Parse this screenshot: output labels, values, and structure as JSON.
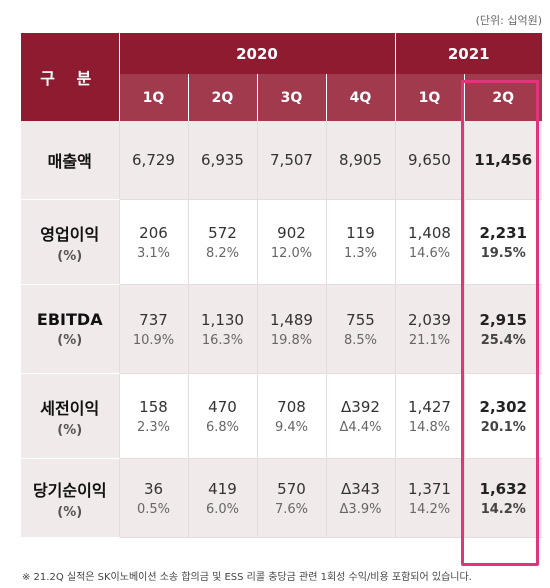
{
  "unit_note": "(단위: 십억원)",
  "header": {
    "category": "구 분",
    "years": [
      "2020",
      "2021"
    ],
    "quarters": [
      "1Q",
      "2Q",
      "3Q",
      "4Q",
      "1Q",
      "2Q"
    ]
  },
  "rows": [
    {
      "label": "매출액",
      "pct_label": "",
      "values": [
        "6,729",
        "6,935",
        "7,507",
        "8,905",
        "9,650",
        "11,456"
      ],
      "pcts": [
        "",
        "",
        "",
        "",
        "",
        ""
      ]
    },
    {
      "label": "영업이익",
      "pct_label": "(%)",
      "values": [
        "206",
        "572",
        "902",
        "119",
        "1,408",
        "2,231"
      ],
      "pcts": [
        "3.1%",
        "8.2%",
        "12.0%",
        "1.3%",
        "14.6%",
        "19.5%"
      ]
    },
    {
      "label": "EBITDA",
      "pct_label": "(%)",
      "values": [
        "737",
        "1,130",
        "1,489",
        "755",
        "2,039",
        "2,915"
      ],
      "pcts": [
        "10.9%",
        "16.3%",
        "19.8%",
        "8.5%",
        "21.1%",
        "25.4%"
      ]
    },
    {
      "label": "세전이익",
      "pct_label": "(%)",
      "values": [
        "158",
        "470",
        "708",
        "Δ392",
        "1,427",
        "2,302"
      ],
      "pcts": [
        "2.3%",
        "6.8%",
        "9.4%",
        "Δ4.4%",
        "14.8%",
        "20.1%"
      ]
    },
    {
      "label": "당기순이익",
      "pct_label": "(%)",
      "values": [
        "36",
        "419",
        "570",
        "Δ343",
        "1,371",
        "1,632"
      ],
      "pcts": [
        "0.5%",
        "6.0%",
        "7.6%",
        "Δ3.9%",
        "14.2%",
        "14.2%"
      ]
    }
  ],
  "footnote": "※ 21.2Q 실적은 SK이노베이션 소송 합의금 및 ESS 리콜 충당금 관련 1회성 수익/비용 포함되어 있습니다.",
  "colors": {
    "header": "#8e1b30",
    "subheader": "#a23a4e",
    "highlight": "#e0357b",
    "shade": "#f0ebea"
  }
}
